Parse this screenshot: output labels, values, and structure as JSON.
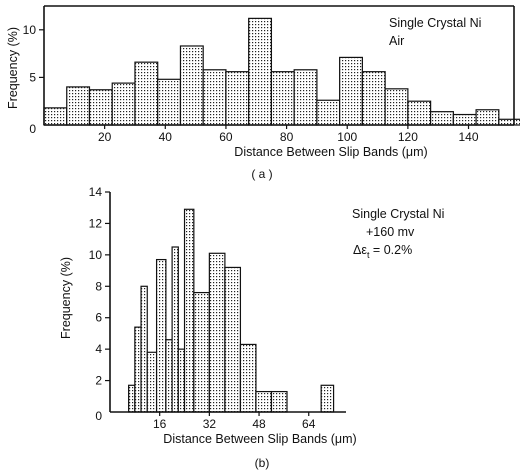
{
  "chart_data": [
    {
      "type": "bar",
      "panel_caption": "( a )",
      "xlabel": "Distance Between Slip Bands (μm)",
      "ylabel": "Frequency (%)",
      "annotation": [
        "Single Crystal Ni",
        "Air"
      ],
      "xlim": [
        0,
        155
      ],
      "ylim": [
        0,
        12.5
      ],
      "xticks": [
        0,
        20,
        40,
        60,
        80,
        100,
        120,
        140
      ],
      "xtick_labels": [
        "0",
        "20",
        "40",
        "60",
        "80",
        "100",
        "120",
        "140"
      ],
      "yticks": [
        5,
        10
      ],
      "ytick_labels": [
        "5",
        "10"
      ],
      "bin_width": 7.5,
      "x": [
        0,
        7.5,
        15,
        22.5,
        30,
        37.5,
        45,
        52.5,
        60,
        67.5,
        75,
        82.5,
        90,
        97.5,
        105,
        112.5,
        120,
        127.5,
        135,
        142.5,
        150
      ],
      "values": [
        1.8,
        4.0,
        3.7,
        4.4,
        6.6,
        4.8,
        8.3,
        5.8,
        5.6,
        11.2,
        5.6,
        5.8,
        2.6,
        7.1,
        5.6,
        3.8,
        2.5,
        1.4,
        1.1,
        1.6,
        0.6
      ],
      "grid": false
    },
    {
      "type": "bar",
      "panel_caption": "(b)",
      "xlabel": "Distance Between Slip Bands (μm)",
      "ylabel": "Frequency (%)",
      "annotation": [
        "Single Crystal Ni",
        "+160 mv",
        "Δε",
        "t",
        " = 0.2%"
      ],
      "xlim": [
        0,
        76
      ],
      "ylim": [
        0,
        14
      ],
      "xticks": [
        0,
        16,
        32,
        48,
        64
      ],
      "xtick_labels": [
        "0",
        "16",
        "32",
        "48",
        "64"
      ],
      "yticks": [
        2,
        4,
        6,
        8,
        10,
        12,
        14
      ],
      "ytick_labels": [
        "2",
        "4",
        "6",
        "8",
        "10",
        "12",
        "14"
      ],
      "bars": [
        {
          "x0": 6,
          "x1": 8,
          "value": 1.7
        },
        {
          "x0": 8,
          "x1": 10,
          "value": 5.4
        },
        {
          "x0": 10,
          "x1": 12,
          "value": 8.0
        },
        {
          "x0": 12,
          "x1": 15,
          "value": 3.8
        },
        {
          "x0": 15,
          "x1": 18,
          "value": 9.7
        },
        {
          "x0": 18,
          "x1": 20,
          "value": 4.6
        },
        {
          "x0": 20,
          "x1": 22,
          "value": 10.5
        },
        {
          "x0": 22,
          "x1": 24,
          "value": 4.0
        },
        {
          "x0": 24,
          "x1": 27,
          "value": 12.9
        },
        {
          "x0": 27,
          "x1": 32,
          "value": 7.6
        },
        {
          "x0": 32,
          "x1": 37,
          "value": 10.1
        },
        {
          "x0": 37,
          "x1": 42,
          "value": 9.2
        },
        {
          "x0": 42,
          "x1": 47,
          "value": 4.3
        },
        {
          "x0": 47,
          "x1": 52,
          "value": 1.3
        },
        {
          "x0": 52,
          "x1": 57,
          "value": 1.3
        },
        {
          "x0": 68,
          "x1": 72,
          "value": 1.7
        }
      ],
      "grid": false
    }
  ]
}
